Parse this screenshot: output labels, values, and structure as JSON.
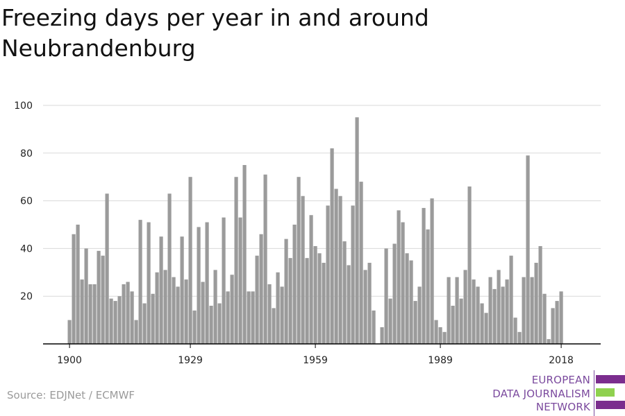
{
  "title": "Freezing days per year in and around Neubrandenburg",
  "source": "Source: EDJNet / ECMWF",
  "logo": {
    "lines": [
      "EUROPEAN",
      "DATA JOURNALISM",
      "NETWORK"
    ],
    "colors": {
      "purple": "#7b2d8e",
      "green": "#8fd14f",
      "text": "#7b4a9e"
    }
  },
  "colors": {
    "bar": "#9b9b9b",
    "grid": "#d9d9d9",
    "axis": "#000000"
  },
  "chart_data": {
    "type": "bar",
    "title": "Freezing days per year in and around Neubrandenburg",
    "xlabel": "",
    "ylabel": "",
    "ylim": [
      0,
      100
    ],
    "y_ticks": [
      20,
      40,
      60,
      80,
      100
    ],
    "x_ticks": [
      1900,
      1929,
      1959,
      1989,
      2018
    ],
    "grid": true,
    "start_year": 1900,
    "categories": [
      1900,
      1901,
      1902,
      1903,
      1904,
      1905,
      1906,
      1907,
      1908,
      1909,
      1910,
      1911,
      1912,
      1913,
      1914,
      1915,
      1916,
      1917,
      1918,
      1919,
      1920,
      1921,
      1922,
      1923,
      1924,
      1925,
      1926,
      1927,
      1928,
      1929,
      1930,
      1931,
      1932,
      1933,
      1934,
      1935,
      1936,
      1937,
      1938,
      1939,
      1940,
      1941,
      1942,
      1943,
      1944,
      1945,
      1946,
      1947,
      1948,
      1949,
      1950,
      1951,
      1952,
      1953,
      1954,
      1955,
      1956,
      1957,
      1958,
      1959,
      1960,
      1961,
      1962,
      1963,
      1964,
      1965,
      1966,
      1967,
      1968,
      1969,
      1970,
      1971,
      1972,
      1973,
      1974,
      1975,
      1976,
      1977,
      1978,
      1979,
      1980,
      1981,
      1982,
      1983,
      1984,
      1985,
      1986,
      1987,
      1988,
      1989,
      1990,
      1991,
      1992,
      1993,
      1994,
      1995,
      1996,
      1997,
      1998,
      1999,
      2000,
      2001,
      2002,
      2003,
      2004,
      2005,
      2006,
      2007,
      2008,
      2009,
      2010,
      2011,
      2012,
      2013,
      2014,
      2015,
      2016,
      2017,
      2018
    ],
    "values": [
      10,
      46,
      50,
      27,
      40,
      25,
      25,
      39,
      37,
      63,
      19,
      18,
      20,
      25,
      26,
      22,
      10,
      52,
      17,
      51,
      21,
      30,
      45,
      31,
      63,
      28,
      24,
      45,
      27,
      70,
      14,
      49,
      26,
      51,
      16,
      31,
      17,
      53,
      22,
      29,
      70,
      53,
      75,
      22,
      22,
      37,
      46,
      71,
      25,
      15,
      30,
      24,
      44,
      36,
      50,
      70,
      62,
      36,
      54,
      41,
      38,
      34,
      58,
      82,
      65,
      62,
      43,
      33,
      58,
      95,
      68,
      31,
      34,
      14,
      0,
      7,
      40,
      19,
      42,
      56,
      51,
      38,
      35,
      18,
      24,
      57,
      48,
      61,
      10,
      7,
      5,
      28,
      16,
      28,
      19,
      31,
      66,
      27,
      24,
      17,
      13,
      28,
      23,
      31,
      24,
      27,
      37,
      11,
      5,
      28,
      79,
      28,
      34,
      41,
      21,
      2,
      15,
      18,
      22
    ]
  }
}
